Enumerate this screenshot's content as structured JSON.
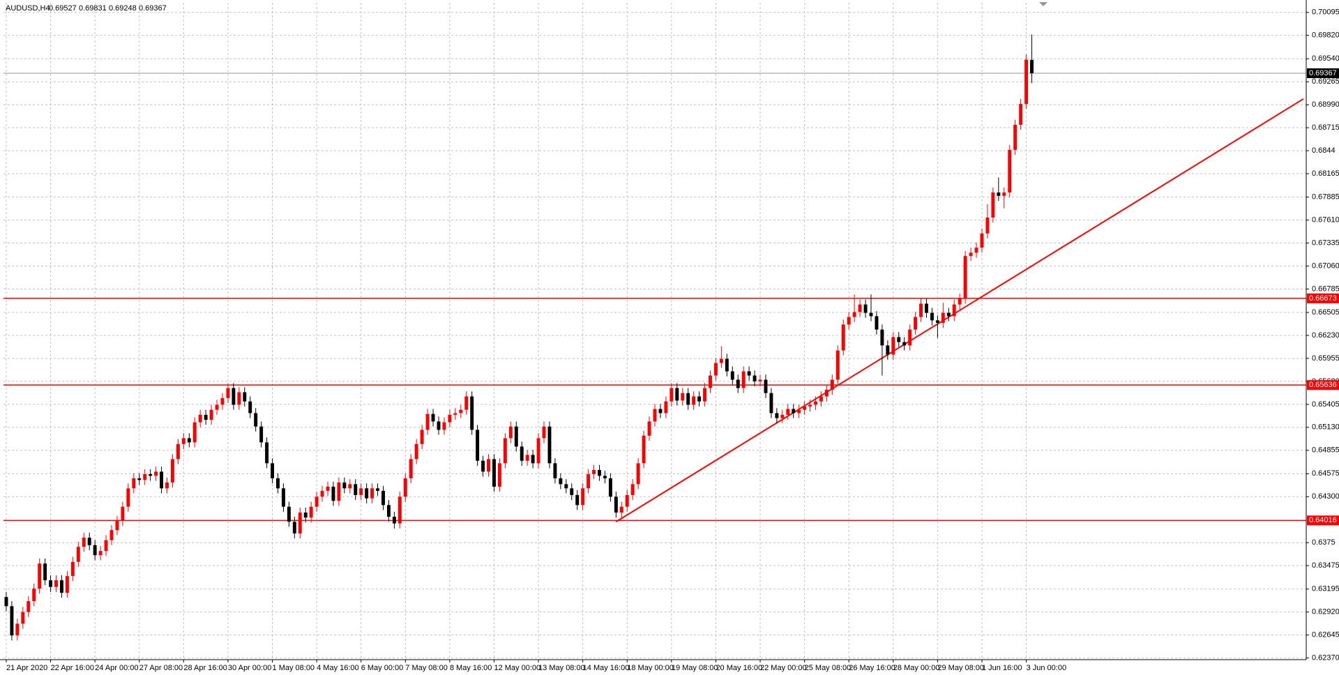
{
  "chart_data": {
    "type": "candlestick",
    "symbol": "AUDUSD,H4",
    "bull_color": "#ff0000",
    "bear_color": "#000000",
    "grid": true,
    "xlim": [
      -0.5,
      234.5
    ],
    "ylim": [
      0.6235,
      0.7021
    ],
    "yticks": [
      0.70095,
      {
        "value": 0.6982,
        "label": "0.69820"
      },
      {
        "value": 0.6954,
        "label": "0.69540"
      },
      0.69265,
      {
        "value": 0.6899,
        "label": "0.68990"
      },
      0.68715,
      0.6844,
      0.68165,
      0.67885,
      {
        "value": 0.6761,
        "label": "0.67610"
      },
      0.67335,
      {
        "value": 0.6706,
        "label": "0.67060"
      },
      0.66785,
      0.66505,
      {
        "value": 0.6623,
        "label": "0.66230"
      },
      0.65955,
      {
        "value": 0.6568,
        "label": "0.65680"
      },
      0.65405,
      {
        "value": 0.6513,
        "label": "0.65130"
      },
      0.64855,
      0.64575,
      {
        "value": 0.643,
        "label": "0.64300"
      },
      0.6375,
      0.63475,
      0.63195,
      {
        "value": 0.6292,
        "label": "0.62920"
      },
      0.62645,
      {
        "value": 0.6237,
        "label": "0.62370"
      }
    ],
    "xticks": [
      {
        "value": 0,
        "label": "21 Apr 2020"
      },
      {
        "value": 8,
        "label": "22 Apr 16:00"
      },
      {
        "value": 16,
        "label": "24 Apr 00:00"
      },
      {
        "value": 24,
        "label": "27 Apr 08:00"
      },
      {
        "value": 32,
        "label": "28 Apr 16:00"
      },
      {
        "value": 40,
        "label": "30 Apr 00:00"
      },
      {
        "value": 48,
        "label": "1 May 08:00"
      },
      {
        "value": 56,
        "label": "4 May 16:00"
      },
      {
        "value": 64,
        "label": "6 May 00:00"
      },
      {
        "value": 72,
        "label": "7 May 08:00"
      },
      {
        "value": 80,
        "label": "8 May 16:00"
      },
      {
        "value": 88,
        "label": "12 May 00:00"
      },
      {
        "value": 96,
        "label": "13 May 08:00"
      },
      {
        "value": 104,
        "label": "14 May 16:00"
      },
      {
        "value": 112,
        "label": "18 May 00:00"
      },
      {
        "value": 120,
        "label": "19 May 08:00"
      },
      {
        "value": 128,
        "label": "20 May 16:00"
      },
      {
        "value": 136,
        "label": "22 May 00:00"
      },
      {
        "value": 144,
        "label": "25 May 08:00"
      },
      {
        "value": 152,
        "label": "26 May 16:00"
      },
      {
        "value": 160,
        "label": "28 May 00:00"
      },
      {
        "value": 168,
        "label": "29 May 08:00"
      },
      {
        "value": 176,
        "label": "1 Jun 16:00"
      },
      {
        "value": 184,
        "label": "3 Jun 00:00"
      }
    ],
    "open": [
      0.631,
      0.6299,
      0.6264,
      0.6278,
      0.6292,
      0.6305,
      0.632,
      0.635,
      0.633,
      0.6322,
      0.633,
      0.6315,
      0.6335,
      0.6352,
      0.637,
      0.6381,
      0.6372,
      0.636,
      0.6365,
      0.6378,
      0.639,
      0.6401,
      0.6418,
      0.644,
      0.6452,
      0.645,
      0.6457,
      0.6455,
      0.646,
      0.644,
      0.6447,
      0.6475,
      0.6493,
      0.65,
      0.6495,
      0.6519,
      0.6528,
      0.6522,
      0.6534,
      0.654,
      0.6548,
      0.656,
      0.654,
      0.6555,
      0.6544,
      0.653,
      0.6514,
      0.6495,
      0.647,
      0.6452,
      0.644,
      0.6418,
      0.64,
      0.6386,
      0.6411,
      0.6405,
      0.6418,
      0.643,
      0.6437,
      0.6442,
      0.6425,
      0.6447,
      0.644,
      0.6445,
      0.6432,
      0.644,
      0.6428,
      0.644,
      0.6437,
      0.642,
      0.6406,
      0.6398,
      0.643,
      0.6452,
      0.6475,
      0.6493,
      0.651,
      0.6529,
      0.652,
      0.651,
      0.6519,
      0.6528,
      0.653,
      0.6534,
      0.655,
      0.651,
      0.6473,
      0.646,
      0.6475,
      0.6442,
      0.647,
      0.65,
      0.6514,
      0.649,
      0.6473,
      0.648,
      0.647,
      0.65,
      0.6514,
      0.647,
      0.6452,
      0.6445,
      0.644,
      0.6432,
      0.642,
      0.644,
      0.6457,
      0.6462,
      0.6455,
      0.6452,
      0.643,
      0.6411,
      0.6418,
      0.6432,
      0.6445,
      0.647,
      0.6503,
      0.652,
      0.6535,
      0.653,
      0.6544,
      0.656,
      0.6545,
      0.6554,
      0.654,
      0.655,
      0.6544,
      0.656,
      0.6575,
      0.659,
      0.6595,
      0.658,
      0.657,
      0.656,
      0.658,
      0.6575,
      0.6568,
      0.657,
      0.6554,
      0.653,
      0.6524,
      0.6528,
      0.6535,
      0.653,
      0.6534,
      0.6538,
      0.654,
      0.6544,
      0.655,
      0.6558,
      0.657,
      0.6605,
      0.6636,
      0.6645,
      0.6651,
      0.666,
      0.665,
      0.6646,
      0.663,
      0.6611,
      0.66,
      0.6621,
      0.6615,
      0.6611,
      0.663,
      0.6645,
      0.6661,
      0.665,
      0.6641,
      0.6638,
      0.665,
      0.6646,
      0.666,
      0.6667,
      0.6718,
      0.6722,
      0.6728,
      0.6745,
      0.6764,
      0.6794,
      0.679,
      0.6794,
      0.6845,
      0.6875,
      0.69,
      0.69527
    ],
    "high": [
      0.6316,
      0.6305,
      0.6284,
      0.6298,
      0.6311,
      0.6326,
      0.6356,
      0.6356,
      0.6336,
      0.6336,
      0.6336,
      0.6341,
      0.6358,
      0.6376,
      0.6387,
      0.6387,
      0.6378,
      0.6371,
      0.6384,
      0.6396,
      0.6407,
      0.6424,
      0.6446,
      0.6458,
      0.6458,
      0.6463,
      0.6463,
      0.6466,
      0.6466,
      0.6453,
      0.6481,
      0.6499,
      0.6506,
      0.6506,
      0.6525,
      0.6534,
      0.6534,
      0.654,
      0.6546,
      0.6554,
      0.6566,
      0.6566,
      0.6561,
      0.6561,
      0.655,
      0.6536,
      0.652,
      0.6501,
      0.6476,
      0.6458,
      0.6446,
      0.6424,
      0.6406,
      0.6417,
      0.6417,
      0.6424,
      0.6436,
      0.6443,
      0.6448,
      0.6448,
      0.6453,
      0.6453,
      0.6451,
      0.6451,
      0.6446,
      0.6446,
      0.6446,
      0.6446,
      0.6443,
      0.6426,
      0.6412,
      0.6436,
      0.6458,
      0.6481,
      0.6499,
      0.6516,
      0.6535,
      0.6535,
      0.6526,
      0.6525,
      0.6534,
      0.6536,
      0.654,
      0.6556,
      0.6556,
      0.6516,
      0.6479,
      0.6481,
      0.6481,
      0.6476,
      0.6506,
      0.652,
      0.652,
      0.6496,
      0.6486,
      0.6486,
      0.6506,
      0.652,
      0.652,
      0.6476,
      0.6458,
      0.6451,
      0.6446,
      0.6438,
      0.6446,
      0.6463,
      0.6468,
      0.6468,
      0.6461,
      0.6458,
      0.6436,
      0.6424,
      0.6438,
      0.6451,
      0.6476,
      0.6509,
      0.6526,
      0.6541,
      0.6541,
      0.655,
      0.6566,
      0.6566,
      0.656,
      0.656,
      0.6556,
      0.6556,
      0.6566,
      0.6581,
      0.6596,
      0.661,
      0.6601,
      0.6586,
      0.6576,
      0.6586,
      0.6586,
      0.6581,
      0.6576,
      0.6576,
      0.656,
      0.6536,
      0.6534,
      0.6541,
      0.6541,
      0.654,
      0.6544,
      0.6546,
      0.655,
      0.6556,
      0.6564,
      0.6576,
      0.6611,
      0.6642,
      0.6651,
      0.6672,
      0.6666,
      0.6666,
      0.6672,
      0.6652,
      0.6636,
      0.6617,
      0.6627,
      0.6627,
      0.6621,
      0.6636,
      0.6651,
      0.6667,
      0.6667,
      0.6656,
      0.6647,
      0.6662,
      0.6656,
      0.6666,
      0.6673,
      0.6724,
      0.6728,
      0.6734,
      0.6751,
      0.678,
      0.68,
      0.6812,
      0.68,
      0.6851,
      0.6881,
      0.6906,
      0.6959,
      0.69831
    ],
    "low": [
      0.6293,
      0.6258,
      0.6258,
      0.6272,
      0.6286,
      0.6299,
      0.6314,
      0.6324,
      0.6316,
      0.6316,
      0.6309,
      0.6309,
      0.6329,
      0.6346,
      0.6364,
      0.6366,
      0.6354,
      0.6354,
      0.6359,
      0.6372,
      0.6384,
      0.6395,
      0.6412,
      0.6434,
      0.6444,
      0.6444,
      0.6449,
      0.6449,
      0.6434,
      0.6434,
      0.6441,
      0.6469,
      0.6487,
      0.6489,
      0.6489,
      0.6513,
      0.6516,
      0.6516,
      0.6528,
      0.6534,
      0.6542,
      0.6534,
      0.6534,
      0.6538,
      0.6524,
      0.6508,
      0.6489,
      0.6464,
      0.6446,
      0.6434,
      0.6412,
      0.6394,
      0.638,
      0.638,
      0.6399,
      0.6399,
      0.6412,
      0.6424,
      0.6431,
      0.6419,
      0.6419,
      0.6434,
      0.6434,
      0.6426,
      0.6426,
      0.6422,
      0.6422,
      0.6431,
      0.6414,
      0.64,
      0.6392,
      0.6392,
      0.6424,
      0.6446,
      0.6469,
      0.6487,
      0.6504,
      0.6514,
      0.6504,
      0.6504,
      0.6513,
      0.6522,
      0.6524,
      0.6528,
      0.6504,
      0.6467,
      0.6454,
      0.6454,
      0.6436,
      0.6436,
      0.6464,
      0.6494,
      0.6484,
      0.6467,
      0.6467,
      0.6464,
      0.6464,
      0.6494,
      0.6464,
      0.6446,
      0.6439,
      0.6434,
      0.6426,
      0.6414,
      0.6414,
      0.6434,
      0.6451,
      0.6449,
      0.6446,
      0.6424,
      0.6405,
      0.6405,
      0.6412,
      0.6426,
      0.6439,
      0.6464,
      0.6497,
      0.6514,
      0.6524,
      0.6524,
      0.6538,
      0.6539,
      0.6539,
      0.6534,
      0.6534,
      0.6538,
      0.6538,
      0.6554,
      0.6569,
      0.6584,
      0.6574,
      0.6564,
      0.6554,
      0.6554,
      0.6569,
      0.6562,
      0.6562,
      0.6548,
      0.6524,
      0.6518,
      0.6518,
      0.6522,
      0.6524,
      0.6524,
      0.6528,
      0.6532,
      0.6534,
      0.6538,
      0.6544,
      0.6552,
      0.6564,
      0.6599,
      0.663,
      0.6639,
      0.6645,
      0.6644,
      0.664,
      0.6624,
      0.6575,
      0.6594,
      0.6594,
      0.6609,
      0.6605,
      0.6605,
      0.6624,
      0.6639,
      0.6644,
      0.6635,
      0.662,
      0.6632,
      0.664,
      0.664,
      0.6654,
      0.6661,
      0.6712,
      0.6716,
      0.6722,
      0.6739,
      0.6758,
      0.6784,
      0.6775,
      0.6788,
      0.6839,
      0.6869,
      0.6894,
      0.69248
    ],
    "close": [
      0.6299,
      0.6264,
      0.6278,
      0.6292,
      0.6305,
      0.632,
      0.635,
      0.633,
      0.6322,
      0.633,
      0.6315,
      0.6335,
      0.6352,
      0.637,
      0.6381,
      0.6372,
      0.636,
      0.6365,
      0.6378,
      0.639,
      0.6401,
      0.6418,
      0.644,
      0.6452,
      0.645,
      0.6457,
      0.6455,
      0.646,
      0.644,
      0.6447,
      0.6475,
      0.6493,
      0.65,
      0.6495,
      0.6519,
      0.6528,
      0.6522,
      0.6534,
      0.654,
      0.6548,
      0.656,
      0.654,
      0.6555,
      0.6544,
      0.653,
      0.6514,
      0.6495,
      0.647,
      0.6452,
      0.644,
      0.6418,
      0.64,
      0.6386,
      0.6411,
      0.6405,
      0.6418,
      0.643,
      0.6437,
      0.6442,
      0.6425,
      0.6447,
      0.644,
      0.6445,
      0.6432,
      0.644,
      0.6428,
      0.644,
      0.6437,
      0.642,
      0.6406,
      0.6398,
      0.643,
      0.6452,
      0.6475,
      0.6493,
      0.651,
      0.6529,
      0.652,
      0.651,
      0.6519,
      0.6528,
      0.653,
      0.6534,
      0.655,
      0.651,
      0.6473,
      0.646,
      0.6475,
      0.6442,
      0.647,
      0.65,
      0.6514,
      0.649,
      0.6473,
      0.648,
      0.647,
      0.65,
      0.6514,
      0.647,
      0.6452,
      0.6445,
      0.644,
      0.6432,
      0.642,
      0.644,
      0.6457,
      0.6462,
      0.6455,
      0.6452,
      0.643,
      0.6411,
      0.6418,
      0.6432,
      0.6445,
      0.647,
      0.6503,
      0.652,
      0.6535,
      0.653,
      0.6544,
      0.656,
      0.6545,
      0.6554,
      0.654,
      0.655,
      0.6544,
      0.656,
      0.6575,
      0.659,
      0.6595,
      0.658,
      0.657,
      0.656,
      0.658,
      0.6575,
      0.6568,
      0.657,
      0.6554,
      0.653,
      0.6524,
      0.6528,
      0.6535,
      0.653,
      0.6534,
      0.6538,
      0.654,
      0.6544,
      0.655,
      0.6558,
      0.657,
      0.6605,
      0.6636,
      0.6645,
      0.6651,
      0.666,
      0.665,
      0.6646,
      0.663,
      0.6611,
      0.66,
      0.6621,
      0.6615,
      0.6611,
      0.663,
      0.6645,
      0.6661,
      0.665,
      0.6641,
      0.6638,
      0.665,
      0.6646,
      0.666,
      0.6667,
      0.6718,
      0.6722,
      0.6728,
      0.6745,
      0.6764,
      0.6794,
      0.679,
      0.6794,
      0.6845,
      0.6875,
      0.69,
      0.6953,
      0.69367
    ],
    "levels": [
      {
        "value": 0.66673,
        "color": "#ff0000"
      },
      {
        "value": 0.65636,
        "color": "#ff0000"
      },
      {
        "value": 0.64016,
        "color": "#ff0000"
      }
    ],
    "current_line_color": "#8c96a0",
    "trendline": {
      "x": [
        110,
        234
      ],
      "y": [
        0.64,
        0.6906
      ],
      "color": "#ff0000"
    }
  }
}
